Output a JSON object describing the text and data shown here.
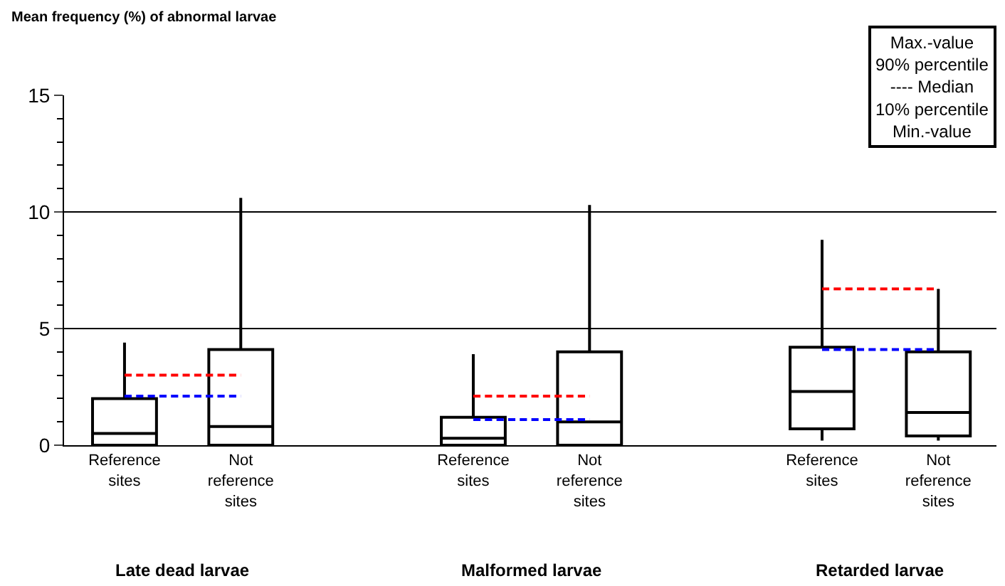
{
  "chart_data": {
    "type": "box",
    "ylabel": "Mean frequency (%) of abnormal larvae",
    "categories": [
      "Reference sites",
      "Not reference sites",
      null,
      "Reference sites",
      "Not reference sites",
      null,
      "Reference sites",
      "Not reference sites"
    ],
    "series": [
      {
        "type": "box",
        "color": "#000000",
        "boxes": [
          {
            "low": 0,
            "q1": 0,
            "median": 0.5,
            "q3": 2.0,
            "high": 4.4
          },
          {
            "low": 0,
            "q1": 0,
            "median": 0.8,
            "q3": 4.1,
            "high": 10.6
          },
          null,
          {
            "low": 0,
            "q1": 0,
            "median": 0.3,
            "q3": 1.2,
            "high": 3.9
          },
          {
            "low": 0,
            "q1": 0,
            "median": 1.0,
            "q3": 4.0,
            "high": 10.3
          },
          null,
          {
            "low": 0.2,
            "q1": 0.7,
            "median": 2.3,
            "q3": 4.2,
            "high": 8.8
          },
          {
            "low": 0.2,
            "q1": 0.4,
            "median": 1.4,
            "q3": 4.0,
            "high": 6.7
          }
        ]
      },
      {
        "type": "line",
        "color": "#ff0000",
        "line_style": "dashed",
        "values": [
          3.0,
          3.0,
          null,
          2.1,
          2.1,
          null,
          6.7,
          6.7
        ]
      },
      {
        "type": "line",
        "color": "#0000ff",
        "line_style": "dashed",
        "values": [
          2.1,
          2.1,
          null,
          1.1,
          1.1,
          null,
          4.1,
          4.1
        ]
      }
    ],
    "ylim": [
      0,
      15
    ],
    "yticks": [
      0,
      5,
      10,
      15
    ],
    "grid": "y",
    "annotations": [
      "Late dead larvae",
      "Malformed larvae",
      "Retarded larvae",
      "Max.-value\n90% percentile\n---- Median\n10% percentile\nMin.-value"
    ]
  }
}
